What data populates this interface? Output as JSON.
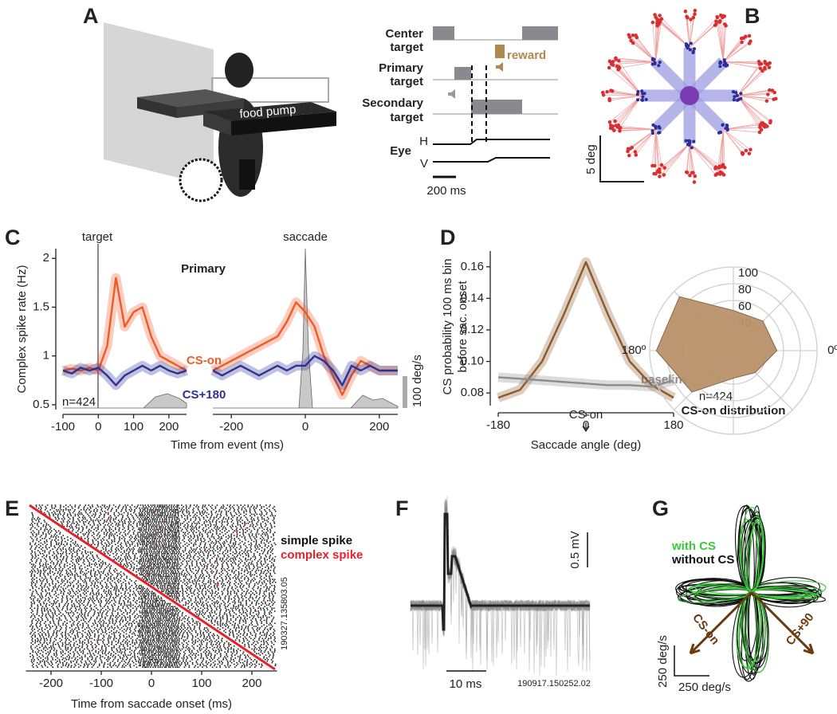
{
  "panel_labels": [
    "A",
    "B",
    "C",
    "D",
    "E",
    "F",
    "G"
  ],
  "panel_a": {
    "food_pump": "food pump",
    "center_target": [
      "Center",
      "target"
    ],
    "primary_target": [
      "Primary",
      "target"
    ],
    "secondary_target": [
      "Secondary",
      "target"
    ],
    "reward": "reward",
    "eye": "Eye",
    "h": "H",
    "v": "V",
    "time_scale": "200 ms"
  },
  "panel_b": {
    "scale": "5 deg"
  },
  "panel_f": {
    "voltage_scale": "0.5 mV",
    "time_scale": "10 ms",
    "cell_id": "190917.150252.02"
  },
  "panel_g": {
    "legend": [
      {
        "name": "with CS",
        "color": "#3cc83c"
      },
      {
        "name": "without CS",
        "color": "#111111"
      }
    ],
    "arrows": [
      "CS-on",
      "CS+90"
    ],
    "velocity_scale_v": "250 deg/s",
    "velocity_scale_h": "250 deg/s"
  },
  "chart_data": [
    {
      "type": "line",
      "ylabel": "Complex spike rate (Hz)",
      "xlabel": "Time from event (ms)",
      "event": "target",
      "title": "Primary",
      "note": "n=424",
      "velocity_scale": "100 deg/s",
      "x": [
        -100,
        -75,
        -50,
        -25,
        0,
        25,
        50,
        75,
        100,
        125,
        150,
        175,
        200,
        225,
        250
      ],
      "xlim": [
        -100,
        250
      ],
      "xticks": [
        -100,
        0,
        100,
        200
      ],
      "ylim": [
        0.45,
        2.1
      ],
      "yticks": [
        0.5,
        1,
        1.5,
        2
      ],
      "series": [
        {
          "name": "CS-on",
          "color": "#f05a28",
          "values": [
            0.85,
            0.87,
            0.85,
            0.88,
            0.85,
            1.1,
            1.8,
            1.3,
            1.45,
            1.5,
            1.2,
            1.0,
            0.95,
            0.9,
            0.85
          ]
        },
        {
          "name": "CS+180",
          "color": "#2e3192",
          "values": [
            0.85,
            0.82,
            0.88,
            0.85,
            0.88,
            0.8,
            0.7,
            0.8,
            0.85,
            0.9,
            0.85,
            0.9,
            0.85,
            0.82,
            0.85
          ]
        }
      ]
    },
    {
      "type": "line",
      "event": "saccade",
      "x": [
        -250,
        -225,
        -200,
        -175,
        -150,
        -125,
        -100,
        -75,
        -50,
        -25,
        0,
        25,
        50,
        75,
        100,
        125,
        150,
        175,
        200,
        225,
        250
      ],
      "xlim": [
        -250,
        250
      ],
      "xticks": [
        -200,
        0,
        200
      ],
      "ylim": [
        0.45,
        2.1
      ],
      "series": [
        {
          "color": "#f05a28",
          "values": [
            0.85,
            0.9,
            0.95,
            1.0,
            1.05,
            1.1,
            1.15,
            1.2,
            1.35,
            1.55,
            1.45,
            1.3,
            1.0,
            0.8,
            0.6,
            0.8,
            0.95,
            0.9,
            0.85,
            0.85,
            0.85
          ]
        },
        {
          "color": "#2e3192",
          "values": [
            0.85,
            0.8,
            0.85,
            0.9,
            0.85,
            0.8,
            0.85,
            0.9,
            0.85,
            0.9,
            0.9,
            1.0,
            0.95,
            0.85,
            0.7,
            0.9,
            0.85,
            0.9,
            0.85,
            0.85,
            0.85
          ]
        }
      ]
    },
    {
      "type": "line",
      "ylabel": [
        "CS probability 100 ms bin",
        "before sac. onset"
      ],
      "xlabel": "Saccade angle (deg)",
      "marker": "CS-on",
      "x": [
        -180,
        -135,
        -90,
        -45,
        0,
        45,
        90,
        135,
        180
      ],
      "xlim": [
        -180,
        180
      ],
      "xticks": [
        -180,
        0,
        180
      ],
      "ylim": [
        0.072,
        0.17
      ],
      "yticks": [
        0.08,
        {
          "value": 0.1,
          "label": "0.10"
        },
        0.12,
        0.14,
        0.16
      ],
      "series": [
        {
          "color": "#8b5a2b",
          "values": [
            0.077,
            0.082,
            0.1,
            0.13,
            0.163,
            0.13,
            0.1,
            0.085,
            0.077
          ]
        },
        {
          "name": "baseline",
          "color": "#8c8c8c",
          "values": [
            0.09,
            0.089,
            0.088,
            0.087,
            0.086,
            0.085,
            0.085,
            0.084,
            0.088
          ]
        }
      ]
    },
    {
      "type": "radar",
      "title": "CS-on distribution",
      "note": "n=424",
      "categories": [
        0,
        45,
        90,
        135,
        180,
        225,
        270,
        315
      ],
      "values": [
        52,
        50,
        48,
        91,
        92,
        70,
        33,
        37
      ],
      "color": "#b8916a",
      "rlim": [
        0,
        100
      ],
      "rticks": [
        40,
        60,
        80,
        100
      ],
      "angle_labels": [
        {
          "value": 180,
          "label": "180º"
        },
        {
          "value": 0,
          "label": "0º"
        }
      ]
    },
    {
      "type": "raster",
      "xlabel": "Time from saccade onset (ms)",
      "xlim": [
        -250,
        250
      ],
      "xticks": [
        -200,
        -100,
        0,
        100,
        200
      ],
      "legend": [
        {
          "name": "simple spike",
          "color": "#111111"
        },
        {
          "name": "complex spike",
          "color": "#e8202a"
        }
      ],
      "cell_id": "190327.135803.05"
    }
  ]
}
